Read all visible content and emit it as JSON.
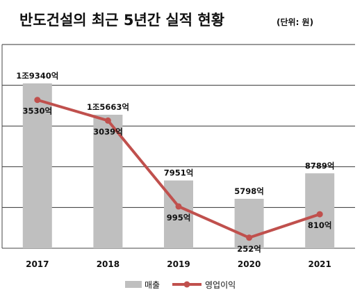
{
  "chart_data": {
    "type": "bar",
    "title": "반도건설의 최근 5년간 실적 현황",
    "subtitle": "(단위: 원)",
    "categories": [
      "2017",
      "2018",
      "2019",
      "2020",
      "2021"
    ],
    "series": [
      {
        "name": "매출",
        "type": "bar",
        "color": "#bfbfbf",
        "values": [
          19340,
          15663,
          7951,
          5798,
          8789
        ],
        "labels": [
          "1조9340억",
          "1조5663억",
          "7951억",
          "5798억",
          "8789억"
        ]
      },
      {
        "name": "영업이익",
        "type": "line",
        "color": "#c0504d",
        "values": [
          3530,
          3039,
          995,
          252,
          810
        ],
        "labels": [
          "3530억",
          "3039억",
          "995억",
          "252억",
          "810억"
        ]
      }
    ],
    "grid": true,
    "legend_position": "bottom"
  }
}
